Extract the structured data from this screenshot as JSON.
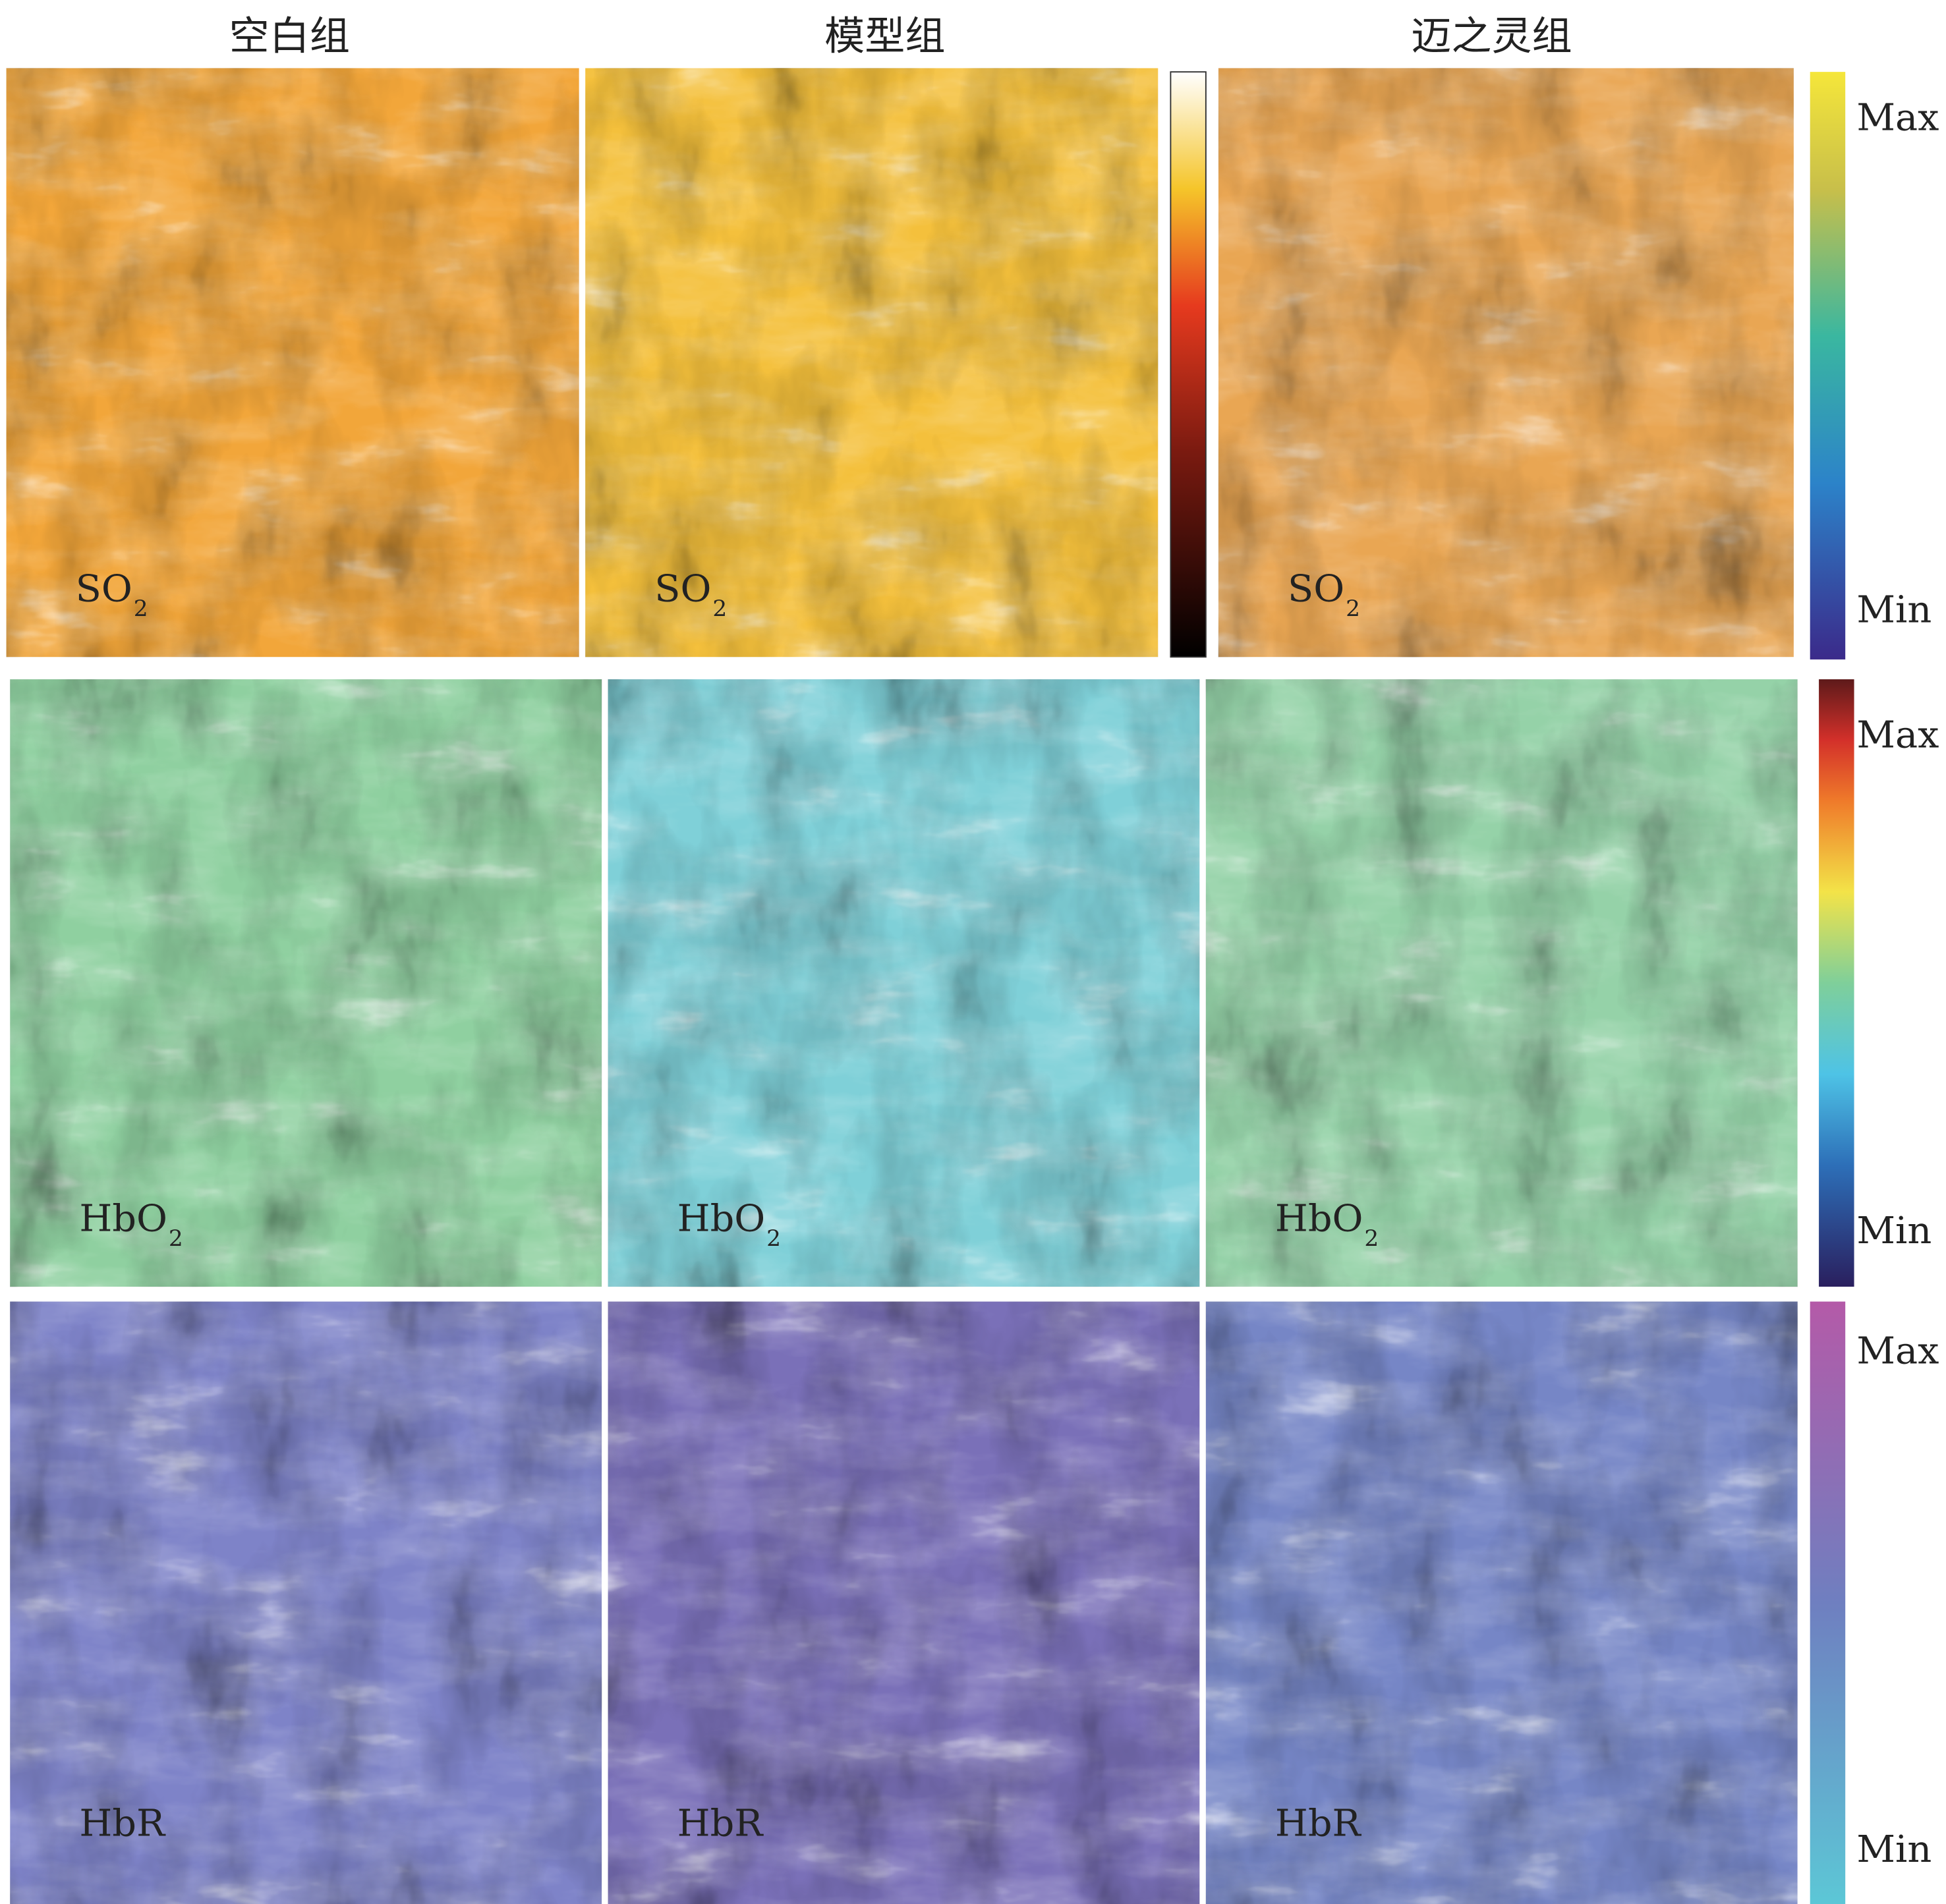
{
  "columns": [
    "空白组",
    "模型组",
    "迈之灵组"
  ],
  "rows": [
    {
      "panels": [
        {
          "label": "SO",
          "sub": "2"
        },
        {
          "label": "SO",
          "sub": "2"
        },
        {
          "label": "SO",
          "sub": "2"
        }
      ],
      "colorbar": {
        "max": "Max",
        "min": "Min"
      }
    },
    {
      "panels": [
        {
          "label": "HbO",
          "sub": "2"
        },
        {
          "label": "HbO",
          "sub": "2"
        },
        {
          "label": "HbO",
          "sub": "2"
        }
      ],
      "colorbar": {
        "max": "Max",
        "min": "Min"
      }
    },
    {
      "panels": [
        {
          "label": "HbR"
        },
        {
          "label": "HbR"
        },
        {
          "label": "HbR"
        }
      ],
      "colorbar": {
        "max": "Max",
        "min": "Min"
      }
    }
  ]
}
